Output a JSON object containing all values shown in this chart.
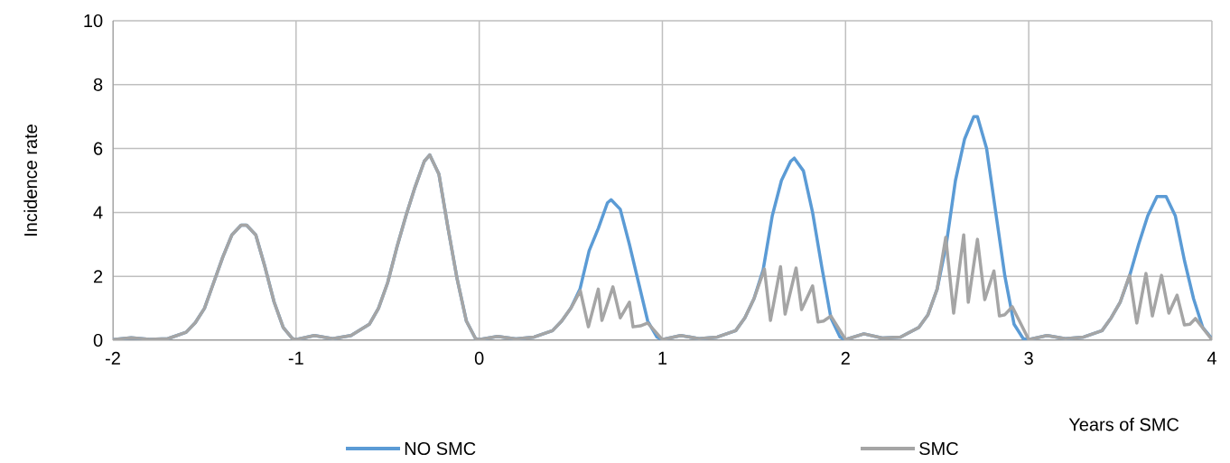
{
  "chart_data": {
    "type": "line",
    "xlabel": "Years of SMC",
    "ylabel": "Incidence rate",
    "xlim": [
      -2,
      4
    ],
    "xticks": [
      -2,
      -1,
      0,
      1,
      2,
      3,
      4
    ],
    "ylim": [
      0,
      10
    ],
    "yticks": [
      0,
      2,
      4,
      6,
      8,
      10
    ],
    "grid": true,
    "legend": "bottom",
    "marker": "none",
    "line_style": "solid",
    "series": [
      {
        "name": "NO SMC",
        "color": "#5b9bd5",
        "x": [
          -2,
          -1.9,
          -1.8,
          -1.7,
          -1.6,
          -1.55,
          -1.5,
          -1.45,
          -1.4,
          -1.35,
          -1.3,
          -1.27,
          -1.22,
          -1.17,
          -1.12,
          -1.07,
          -1.02,
          -1,
          -0.9,
          -0.8,
          -0.7,
          -0.6,
          -0.55,
          -0.5,
          -0.45,
          -0.4,
          -0.35,
          -0.3,
          -0.27,
          -0.22,
          -0.17,
          -0.12,
          -0.07,
          -0.02,
          0,
          0.1,
          0.2,
          0.3,
          0.4,
          0.45,
          0.5,
          0.55,
          0.6,
          0.65,
          0.7,
          0.72,
          0.77,
          0.82,
          0.87,
          0.92,
          0.97,
          1,
          1.1,
          1.2,
          1.3,
          1.4,
          1.45,
          1.5,
          1.55,
          1.6,
          1.65,
          1.7,
          1.72,
          1.77,
          1.82,
          1.87,
          1.92,
          1.97,
          2,
          2.1,
          2.2,
          2.3,
          2.4,
          2.45,
          2.5,
          2.55,
          2.6,
          2.65,
          2.7,
          2.72,
          2.77,
          2.82,
          2.87,
          2.92,
          2.97,
          3,
          3.1,
          3.2,
          3.3,
          3.4,
          3.45,
          3.5,
          3.55,
          3.6,
          3.65,
          3.7,
          3.75,
          3.8,
          3.85,
          3.9,
          3.95,
          4
        ],
        "values": [
          0.02,
          0.08,
          0.03,
          0.05,
          0.25,
          0.55,
          1.0,
          1.8,
          2.6,
          3.3,
          3.6,
          3.6,
          3.3,
          2.3,
          1.2,
          0.4,
          0.05,
          0.02,
          0.15,
          0.05,
          0.15,
          0.5,
          1.0,
          1.8,
          2.9,
          3.9,
          4.8,
          5.6,
          5.8,
          5.2,
          3.5,
          1.9,
          0.6,
          0.05,
          0.02,
          0.12,
          0.04,
          0.1,
          0.3,
          0.6,
          1.0,
          1.6,
          2.8,
          3.5,
          4.3,
          4.4,
          4.1,
          3.0,
          1.8,
          0.6,
          0.1,
          0.02,
          0.15,
          0.05,
          0.1,
          0.3,
          0.7,
          1.3,
          2.2,
          3.9,
          5.0,
          5.6,
          5.7,
          5.3,
          4.0,
          2.3,
          0.7,
          0.1,
          0.02,
          0.2,
          0.07,
          0.1,
          0.4,
          0.8,
          1.6,
          3.0,
          5.0,
          6.3,
          7.0,
          7.0,
          6.0,
          4.0,
          2.0,
          0.5,
          0.05,
          0.02,
          0.15,
          0.05,
          0.1,
          0.3,
          0.7,
          1.2,
          2.0,
          3.0,
          3.9,
          4.5,
          4.5,
          3.9,
          2.5,
          1.3,
          0.4,
          0.05
        ]
      },
      {
        "name": "SMC",
        "color": "#a5a5a5",
        "x": [
          -2,
          -1.9,
          -1.8,
          -1.7,
          -1.6,
          -1.55,
          -1.5,
          -1.45,
          -1.4,
          -1.35,
          -1.3,
          -1.27,
          -1.22,
          -1.17,
          -1.12,
          -1.07,
          -1.02,
          -1,
          -0.9,
          -0.8,
          -0.7,
          -0.6,
          -0.55,
          -0.5,
          -0.45,
          -0.4,
          -0.35,
          -0.3,
          -0.27,
          -0.22,
          -0.17,
          -0.12,
          -0.07,
          -0.02,
          0,
          0.1,
          0.2,
          0.3,
          0.4,
          0.45,
          0.5,
          0.552,
          0.596,
          0.65,
          0.67,
          0.73,
          0.77,
          0.82,
          0.84,
          0.88,
          0.92,
          1,
          1.1,
          1.2,
          1.3,
          1.4,
          1.45,
          1.5,
          1.557,
          1.59,
          1.645,
          1.67,
          1.73,
          1.76,
          1.82,
          1.85,
          1.88,
          1.92,
          2,
          2.1,
          2.2,
          2.3,
          2.4,
          2.45,
          2.5,
          2.547,
          2.59,
          2.645,
          2.67,
          2.72,
          2.76,
          2.81,
          2.84,
          2.87,
          2.91,
          3,
          3.1,
          3.2,
          3.3,
          3.4,
          3.45,
          3.5,
          3.55,
          3.59,
          3.64,
          3.675,
          3.725,
          3.765,
          3.81,
          3.85,
          3.88,
          3.91,
          4
        ],
        "values": [
          0.02,
          0.08,
          0.03,
          0.05,
          0.25,
          0.55,
          1.0,
          1.8,
          2.6,
          3.3,
          3.6,
          3.6,
          3.3,
          2.3,
          1.2,
          0.4,
          0.05,
          0.02,
          0.15,
          0.05,
          0.15,
          0.5,
          1.0,
          1.8,
          2.9,
          3.9,
          4.8,
          5.6,
          5.8,
          5.2,
          3.5,
          1.9,
          0.6,
          0.05,
          0.02,
          0.12,
          0.04,
          0.1,
          0.3,
          0.6,
          1.0,
          1.55,
          0.42,
          1.6,
          0.62,
          1.67,
          0.7,
          1.19,
          0.42,
          0.45,
          0.54,
          0.02,
          0.15,
          0.05,
          0.1,
          0.3,
          0.7,
          1.3,
          2.23,
          0.62,
          2.3,
          0.82,
          2.26,
          0.96,
          1.7,
          0.57,
          0.6,
          0.76,
          0.02,
          0.2,
          0.07,
          0.1,
          0.4,
          0.8,
          1.6,
          3.22,
          0.85,
          3.3,
          1.19,
          3.16,
          1.27,
          2.17,
          0.76,
          0.8,
          1.05,
          0.02,
          0.15,
          0.05,
          0.1,
          0.3,
          0.7,
          1.2,
          2.03,
          0.54,
          2.09,
          0.76,
          2.03,
          0.85,
          1.41,
          0.48,
          0.5,
          0.68,
          0.02
        ]
      }
    ]
  }
}
